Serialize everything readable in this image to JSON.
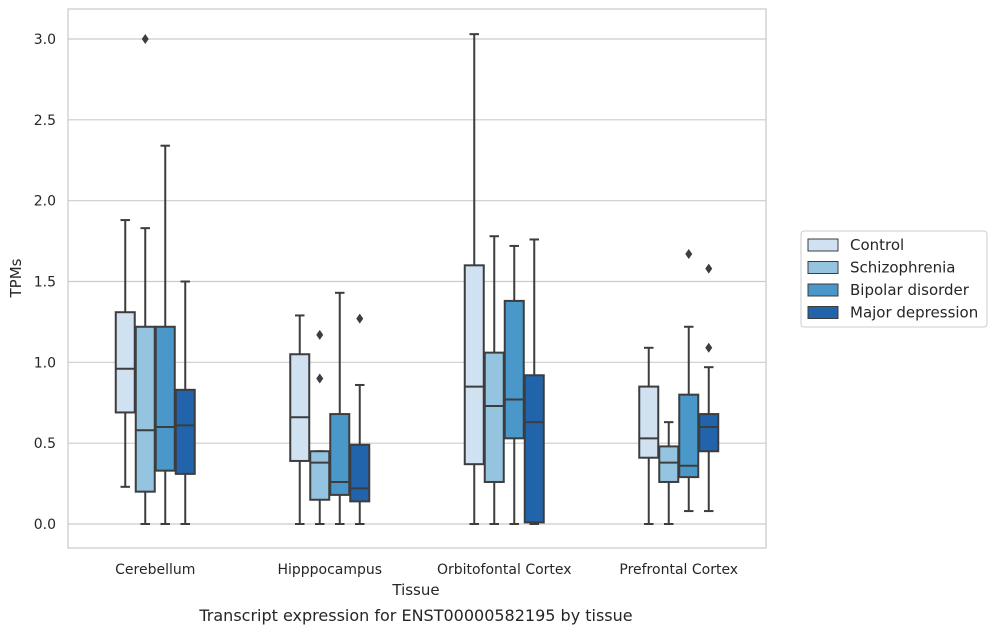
{
  "caption": "Transcript expression for ENST00000582195 by tissue",
  "chart_data": {
    "type": "box",
    "xlabel": "Tissue",
    "ylabel": "TPMs",
    "ylim": [
      -0.15,
      3.2
    ],
    "yticks": [
      0.0,
      0.5,
      1.0,
      1.5,
      2.0,
      2.5,
      3.0
    ],
    "ytick_labels": [
      "0.0",
      "0.5",
      "1.0",
      "1.5",
      "2.0",
      "2.5",
      "3.0"
    ],
    "grid": true,
    "legend_position": "right",
    "categories": [
      "Cerebellum",
      "Hipppocampus",
      "Orbitofontal Cortex",
      "Prefrontal Cortex"
    ],
    "series": [
      {
        "name": "Control",
        "color": "#d0e1f2",
        "boxes": [
          {
            "whislo": 0.23,
            "q1": 0.69,
            "med": 0.96,
            "q3": 1.31,
            "whishi": 1.88,
            "fliers": []
          },
          {
            "whislo": 0.0,
            "q1": 0.39,
            "med": 0.66,
            "q3": 1.05,
            "whishi": 1.29,
            "fliers": []
          },
          {
            "whislo": 0.0,
            "q1": 0.37,
            "med": 0.85,
            "q3": 1.6,
            "whishi": 3.03,
            "fliers": []
          },
          {
            "whislo": 0.0,
            "q1": 0.41,
            "med": 0.53,
            "q3": 0.85,
            "whishi": 1.09,
            "fliers": []
          }
        ]
      },
      {
        "name": "Schizophrenia",
        "color": "#94c4df",
        "boxes": [
          {
            "whislo": 0.0,
            "q1": 0.2,
            "med": 0.58,
            "q3": 1.22,
            "whishi": 1.83,
            "fliers": [
              3.0
            ]
          },
          {
            "whislo": 0.0,
            "q1": 0.15,
            "med": 0.38,
            "q3": 0.45,
            "whishi": 0.45,
            "fliers": [
              0.9,
              1.17
            ]
          },
          {
            "whislo": 0.0,
            "q1": 0.26,
            "med": 0.73,
            "q3": 1.06,
            "whishi": 1.78,
            "fliers": []
          },
          {
            "whislo": 0.0,
            "q1": 0.26,
            "med": 0.38,
            "q3": 0.48,
            "whishi": 0.63,
            "fliers": []
          }
        ]
      },
      {
        "name": "Bipolar disorder",
        "color": "#4a98c9",
        "boxes": [
          {
            "whislo": 0.0,
            "q1": 0.33,
            "med": 0.6,
            "q3": 1.22,
            "whishi": 2.34,
            "fliers": []
          },
          {
            "whislo": 0.0,
            "q1": 0.18,
            "med": 0.26,
            "q3": 0.68,
            "whishi": 1.43,
            "fliers": []
          },
          {
            "whislo": 0.0,
            "q1": 0.53,
            "med": 0.77,
            "q3": 1.38,
            "whishi": 1.72,
            "fliers": []
          },
          {
            "whislo": 0.08,
            "q1": 0.29,
            "med": 0.36,
            "q3": 0.8,
            "whishi": 1.22,
            "fliers": [
              1.67
            ]
          }
        ]
      },
      {
        "name": "Major depression",
        "color": "#2164ab",
        "boxes": [
          {
            "whislo": 0.0,
            "q1": 0.31,
            "med": 0.61,
            "q3": 0.83,
            "whishi": 1.5,
            "fliers": []
          },
          {
            "whislo": 0.0,
            "q1": 0.14,
            "med": 0.22,
            "q3": 0.49,
            "whishi": 0.86,
            "fliers": [
              1.27
            ]
          },
          {
            "whislo": 0.0,
            "q1": 0.01,
            "med": 0.63,
            "q3": 0.92,
            "whishi": 1.76,
            "fliers": []
          },
          {
            "whislo": 0.08,
            "q1": 0.45,
            "med": 0.6,
            "q3": 0.68,
            "whishi": 0.97,
            "fliers": [
              1.09,
              1.58
            ]
          }
        ]
      }
    ]
  }
}
